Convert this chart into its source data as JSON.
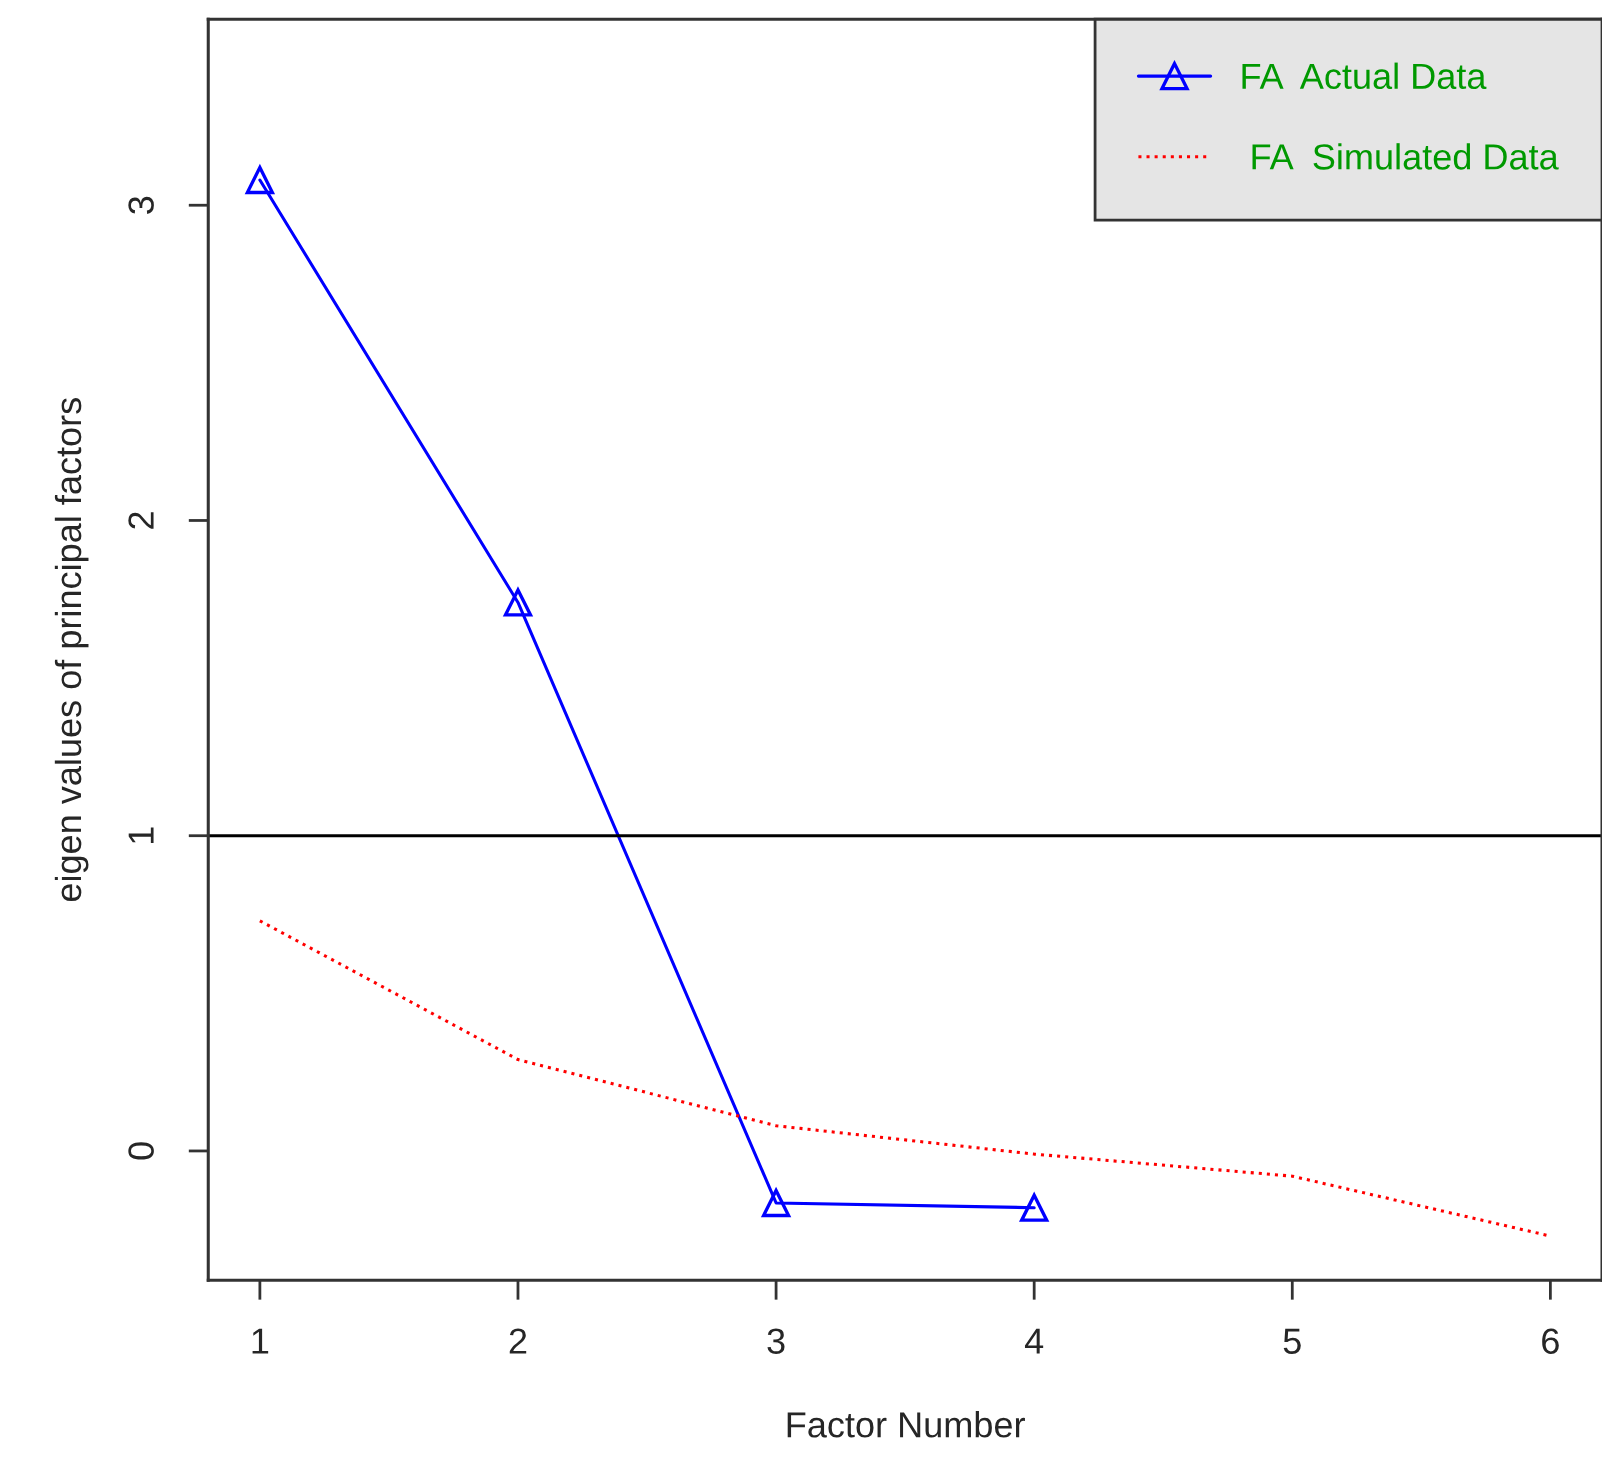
{
  "chart_data": {
    "type": "line",
    "xlabel": "Factor Number",
    "ylabel": "eigen values of principal factors",
    "x": [
      1,
      2,
      3,
      4,
      5,
      6
    ],
    "series": [
      {
        "name": "FA  Actual Data",
        "color": "#0000ff",
        "values": [
          3.08,
          1.74,
          -0.165,
          -0.18,
          null,
          null
        ],
        "marker": "triangle",
        "line_style": "solid"
      },
      {
        "name": " FA  Simulated Data",
        "color": "#ff0000",
        "values": [
          0.73,
          0.29,
          0.08,
          -0.01,
          -0.08,
          -0.27
        ],
        "marker": "none",
        "line_style": "dotted"
      }
    ],
    "ref_lines": [
      {
        "axis": "y",
        "value": 1,
        "color": "#000000"
      }
    ],
    "xlim": [
      0.8,
      6.2
    ],
    "ylim": [
      -0.41,
      3.59
    ],
    "xticks": [
      1,
      2,
      3,
      4,
      5,
      6
    ],
    "yticks": [
      0,
      1,
      2,
      3
    ],
    "grid": false,
    "legend": "top right"
  }
}
